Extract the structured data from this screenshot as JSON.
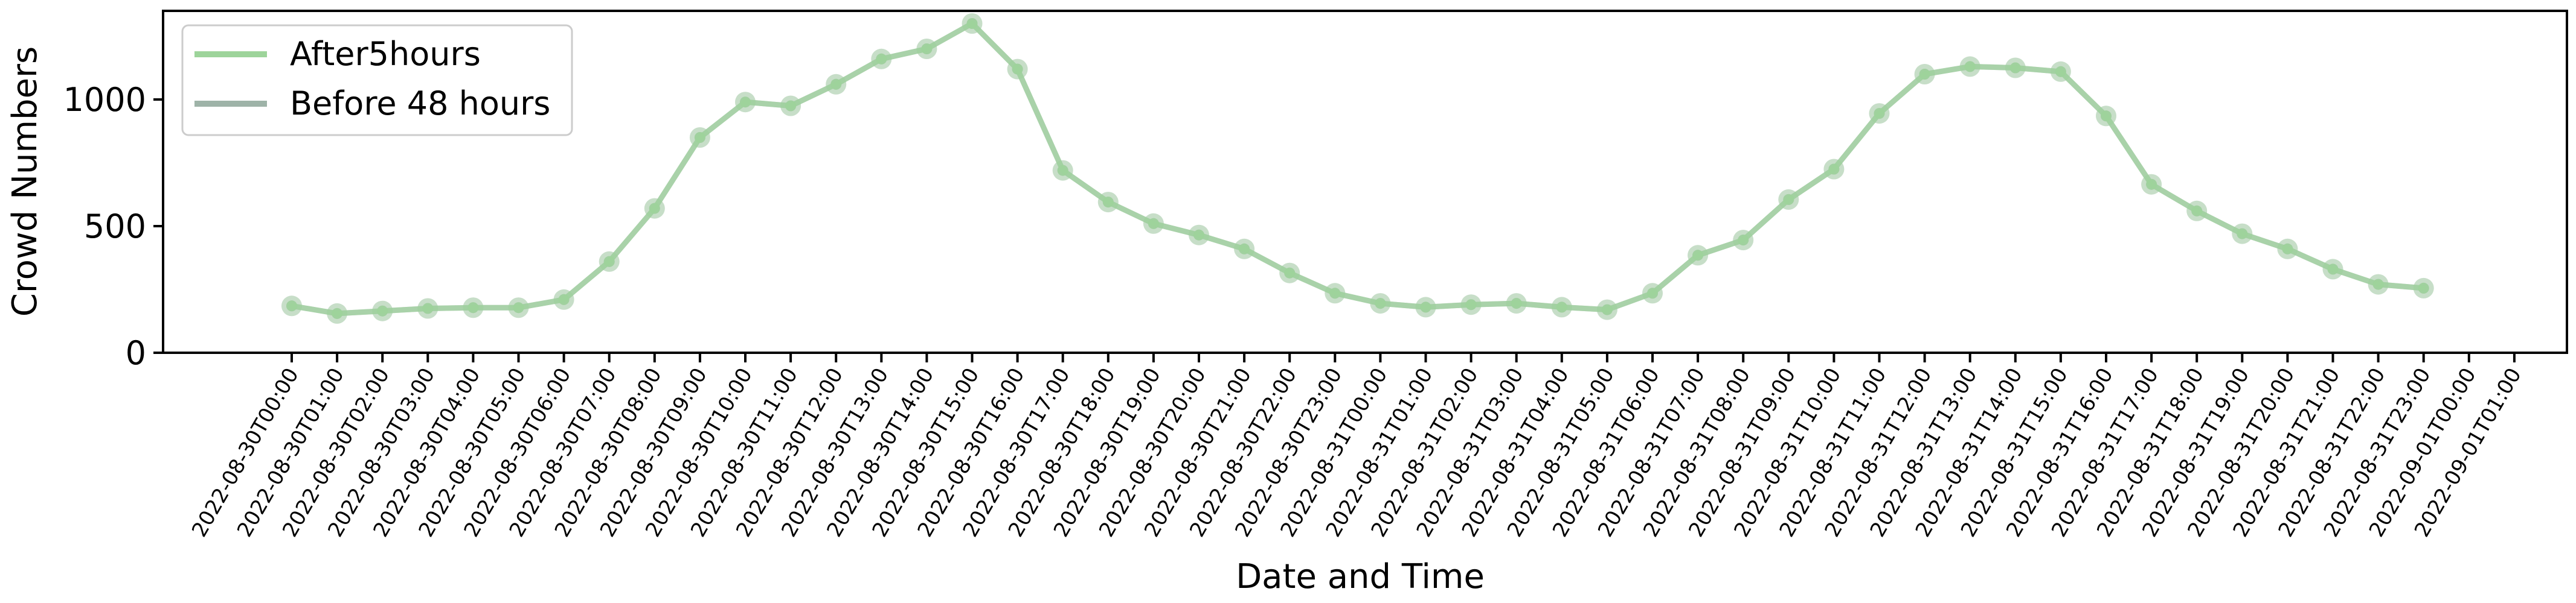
{
  "chart_data": {
    "type": "line",
    "title": "",
    "xlabel": "Date and Time",
    "ylabel": "Crowd Numbers",
    "ylim": [
      0,
      1350
    ],
    "yticks": [
      0,
      500,
      1000
    ],
    "grid": false,
    "legend_position": "top-left",
    "categories": [
      "2022-08-30T00:00",
      "2022-08-30T01:00",
      "2022-08-30T02:00",
      "2022-08-30T03:00",
      "2022-08-30T04:00",
      "2022-08-30T05:00",
      "2022-08-30T06:00",
      "2022-08-30T07:00",
      "2022-08-30T08:00",
      "2022-08-30T09:00",
      "2022-08-30T10:00",
      "2022-08-30T11:00",
      "2022-08-30T12:00",
      "2022-08-30T13:00",
      "2022-08-30T14:00",
      "2022-08-30T15:00",
      "2022-08-30T16:00",
      "2022-08-30T17:00",
      "2022-08-30T18:00",
      "2022-08-30T19:00",
      "2022-08-30T20:00",
      "2022-08-30T21:00",
      "2022-08-30T22:00",
      "2022-08-30T23:00",
      "2022-08-31T00:00",
      "2022-08-31T01:00",
      "2022-08-31T02:00",
      "2022-08-31T03:00",
      "2022-08-31T04:00",
      "2022-08-31T05:00",
      "2022-08-31T06:00",
      "2022-08-31T07:00",
      "2022-08-31T08:00",
      "2022-08-31T09:00",
      "2022-08-31T10:00",
      "2022-08-31T11:00",
      "2022-08-31T12:00",
      "2022-08-31T13:00",
      "2022-08-31T14:00",
      "2022-08-31T15:00",
      "2022-08-31T16:00",
      "2022-08-31T17:00",
      "2022-08-31T18:00",
      "2022-08-31T19:00",
      "2022-08-31T20:00",
      "2022-08-31T21:00",
      "2022-08-31T22:00",
      "2022-08-31T23:00",
      "2022-09-01T00:00",
      "2022-09-01T01:00"
    ],
    "series": [
      {
        "name": "After5hours",
        "color": "#9dd49a",
        "values": [
          185,
          155,
          165,
          175,
          178,
          178,
          210,
          360,
          570,
          850,
          990,
          975,
          1060,
          1160,
          1200,
          1300,
          1120,
          720,
          595,
          510,
          465,
          410,
          315,
          235,
          195,
          180,
          190,
          195,
          180,
          170,
          235,
          385,
          445,
          605,
          725,
          945,
          1100,
          1130,
          1125,
          1110,
          935,
          665,
          560,
          470,
          410,
          330,
          270,
          255,
          null,
          null
        ]
      },
      {
        "name": "Before 48 hours",
        "color": "#9eb3a8",
        "values": [
          185,
          155,
          165,
          175,
          178,
          178,
          210,
          360,
          570,
          850,
          990,
          975,
          1060,
          1160,
          1200,
          1300,
          1120,
          720,
          595,
          510,
          465,
          410,
          315,
          235,
          195,
          180,
          190,
          195,
          180,
          170,
          235,
          385,
          445,
          605,
          725,
          945,
          1100,
          1130,
          1125,
          1110,
          935,
          665,
          560,
          470,
          410,
          330,
          270,
          255,
          null,
          null
        ]
      }
    ]
  }
}
